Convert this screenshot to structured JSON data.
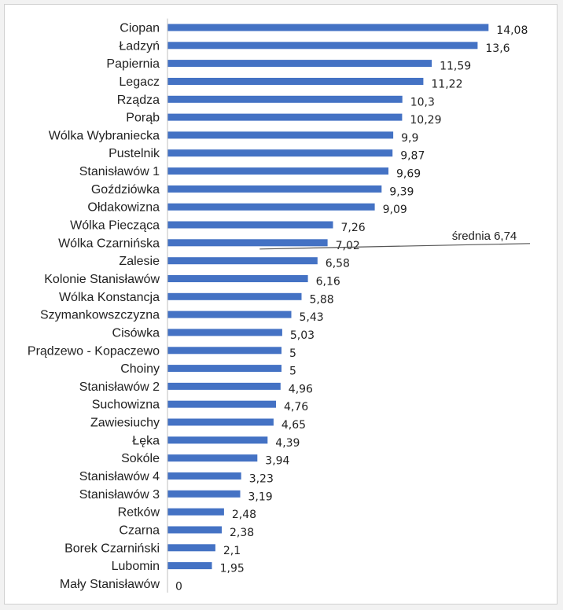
{
  "chart_data": {
    "type": "bar",
    "orientation": "horizontal",
    "categories": [
      "Ciopan",
      "Ładzyń",
      "Papiernia",
      "Legacz",
      "Rządza",
      "Porąb",
      "Wólka Wybraniecka",
      "Pustelnik",
      "Stanisławów 1",
      "Goździówka",
      "Ołdakowizna",
      "Wólka Piecząca",
      "Wólka Czarnińska",
      "Zalesie",
      "Kolonie Stanisławów",
      "Wólka Konstancja",
      "Szymankowszczyzna",
      "Cisówka",
      "Prądzewo - Kopaczewo",
      "Choiny",
      "Stanisławów 2",
      "Suchowizna",
      "Zawiesiuchy",
      "Łęka",
      "Sokóle",
      "Stanisławów 4",
      "Stanisławów 3",
      "Retków",
      "Czarna",
      "Borek Czarniński",
      "Lubomin",
      "Mały Stanisławów"
    ],
    "values": [
      14.08,
      13.6,
      11.59,
      11.22,
      10.3,
      10.29,
      9.9,
      9.87,
      9.69,
      9.39,
      9.09,
      7.26,
      7.02,
      6.58,
      6.16,
      5.88,
      5.43,
      5.03,
      5,
      5,
      4.96,
      4.76,
      4.65,
      4.39,
      3.94,
      3.23,
      3.19,
      2.48,
      2.38,
      2.1,
      1.95,
      0
    ],
    "value_labels": [
      "14,08",
      "13,6",
      "11,59",
      "11,22",
      "10,3",
      "10,29",
      "9,9",
      "9,87",
      "9,69",
      "9,39",
      "9,09",
      "7,26",
      "7,02",
      "6,58",
      "6,16",
      "5,88",
      "5,43",
      "5,03",
      "5",
      "5",
      "4,96",
      "4,76",
      "4,65",
      "4,39",
      "3,94",
      "3,23",
      "3,19",
      "2,48",
      "2,38",
      "2,1",
      "1,95",
      "0"
    ],
    "xlim": [
      0,
      15
    ],
    "grid": false,
    "legend": "none",
    "bar_color": "#4472c4",
    "average": {
      "value": 6.74,
      "label": "średnia 6,74",
      "line_color": "#555555"
    }
  }
}
